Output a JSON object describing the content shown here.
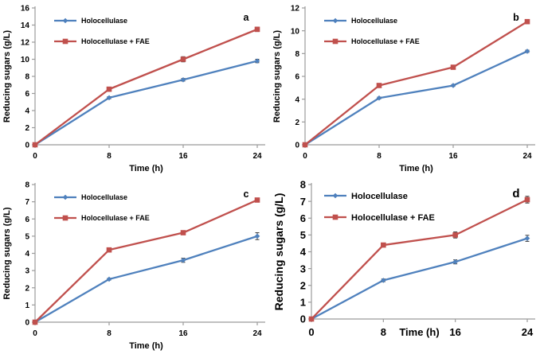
{
  "figure": {
    "description": "Four-panel line figure of reducing sugars released over time",
    "background": "#ffffff"
  },
  "colors": {
    "holocellulase": "#4F81BD",
    "holocellulase_fae": "#C0504D",
    "axis": "#9b9b9b",
    "error_bar": "#3a3a3a",
    "text": "#000000"
  },
  "chart_data": [
    {
      "type": "line",
      "panel_label": "a",
      "xlabel": "Time (h)",
      "ylabel": "Reducing sugars (g/L)",
      "x": [
        0,
        8,
        16,
        24
      ],
      "xlim": [
        0,
        24
      ],
      "ylim": [
        0,
        16
      ],
      "ytick_step": 2,
      "grid": false,
      "legend_position": "top-left-inside",
      "xlabel_inline": false,
      "large_fonts": false,
      "series": [
        {
          "name": "Holocellulase",
          "color": "#4F81BD",
          "marker": "diamond",
          "values": [
            0,
            5.5,
            7.6,
            9.8
          ],
          "errors": [
            0,
            0.12,
            0.15,
            0.2
          ]
        },
        {
          "name": "Holocellulase + FAE",
          "color": "#C0504D",
          "marker": "square",
          "values": [
            0,
            6.5,
            10.0,
            13.5
          ],
          "errors": [
            0,
            0.12,
            0.3,
            0.25
          ]
        }
      ]
    },
    {
      "type": "line",
      "panel_label": "b",
      "xlabel": "Time (h)",
      "ylabel": "Reducing sugars (g/L)",
      "x": [
        0,
        8,
        16,
        24
      ],
      "xlim": [
        0,
        24
      ],
      "ylim": [
        0,
        12
      ],
      "ytick_step": 2,
      "grid": false,
      "legend_position": "top-left-inside",
      "xlabel_inline": false,
      "large_fonts": false,
      "series": [
        {
          "name": "Holocellulase",
          "color": "#4F81BD",
          "marker": "diamond",
          "values": [
            0,
            4.1,
            5.2,
            8.2
          ],
          "errors": [
            0,
            0.08,
            0.08,
            0.1
          ]
        },
        {
          "name": "Holocellulase + FAE",
          "color": "#C0504D",
          "marker": "square",
          "values": [
            0,
            5.2,
            6.8,
            10.8
          ],
          "errors": [
            0,
            0.1,
            0.12,
            0.15
          ]
        }
      ]
    },
    {
      "type": "line",
      "panel_label": "c",
      "xlabel": "Time (h)",
      "ylabel": "Reducing sugars (g/L)",
      "x": [
        0,
        8,
        16,
        24
      ],
      "xlim": [
        0,
        24
      ],
      "ylim": [
        0,
        8
      ],
      "ytick_step": 1,
      "grid": false,
      "legend_position": "top-left-inside",
      "xlabel_inline": false,
      "large_fonts": false,
      "series": [
        {
          "name": "Holocellulase",
          "color": "#4F81BD",
          "marker": "diamond",
          "values": [
            0,
            2.5,
            3.6,
            5.0
          ],
          "errors": [
            0,
            0.05,
            0.12,
            0.2
          ]
        },
        {
          "name": "Holocellulase + FAE",
          "color": "#C0504D",
          "marker": "square",
          "values": [
            0,
            4.2,
            5.2,
            7.1
          ],
          "errors": [
            0,
            0.06,
            0.1,
            0.1
          ]
        }
      ]
    },
    {
      "type": "line",
      "panel_label": "d",
      "xlabel": "Time (h)",
      "ylabel": "Reducing sugars (g/L)",
      "x": [
        0,
        8,
        16,
        24
      ],
      "xlim": [
        0,
        24
      ],
      "ylim": [
        0,
        8
      ],
      "ytick_step": 1,
      "grid": false,
      "legend_position": "top-left-inside",
      "xlabel_inline": true,
      "large_fonts": true,
      "series": [
        {
          "name": "Holocellulase",
          "color": "#4F81BD",
          "marker": "diamond",
          "values": [
            0,
            2.3,
            3.4,
            4.8
          ],
          "errors": [
            0,
            0.08,
            0.12,
            0.18
          ]
        },
        {
          "name": "Holocellulase + FAE",
          "color": "#C0504D",
          "marker": "square",
          "values": [
            0,
            4.4,
            5.0,
            7.1
          ],
          "errors": [
            0,
            0.1,
            0.18,
            0.2
          ]
        }
      ]
    }
  ]
}
